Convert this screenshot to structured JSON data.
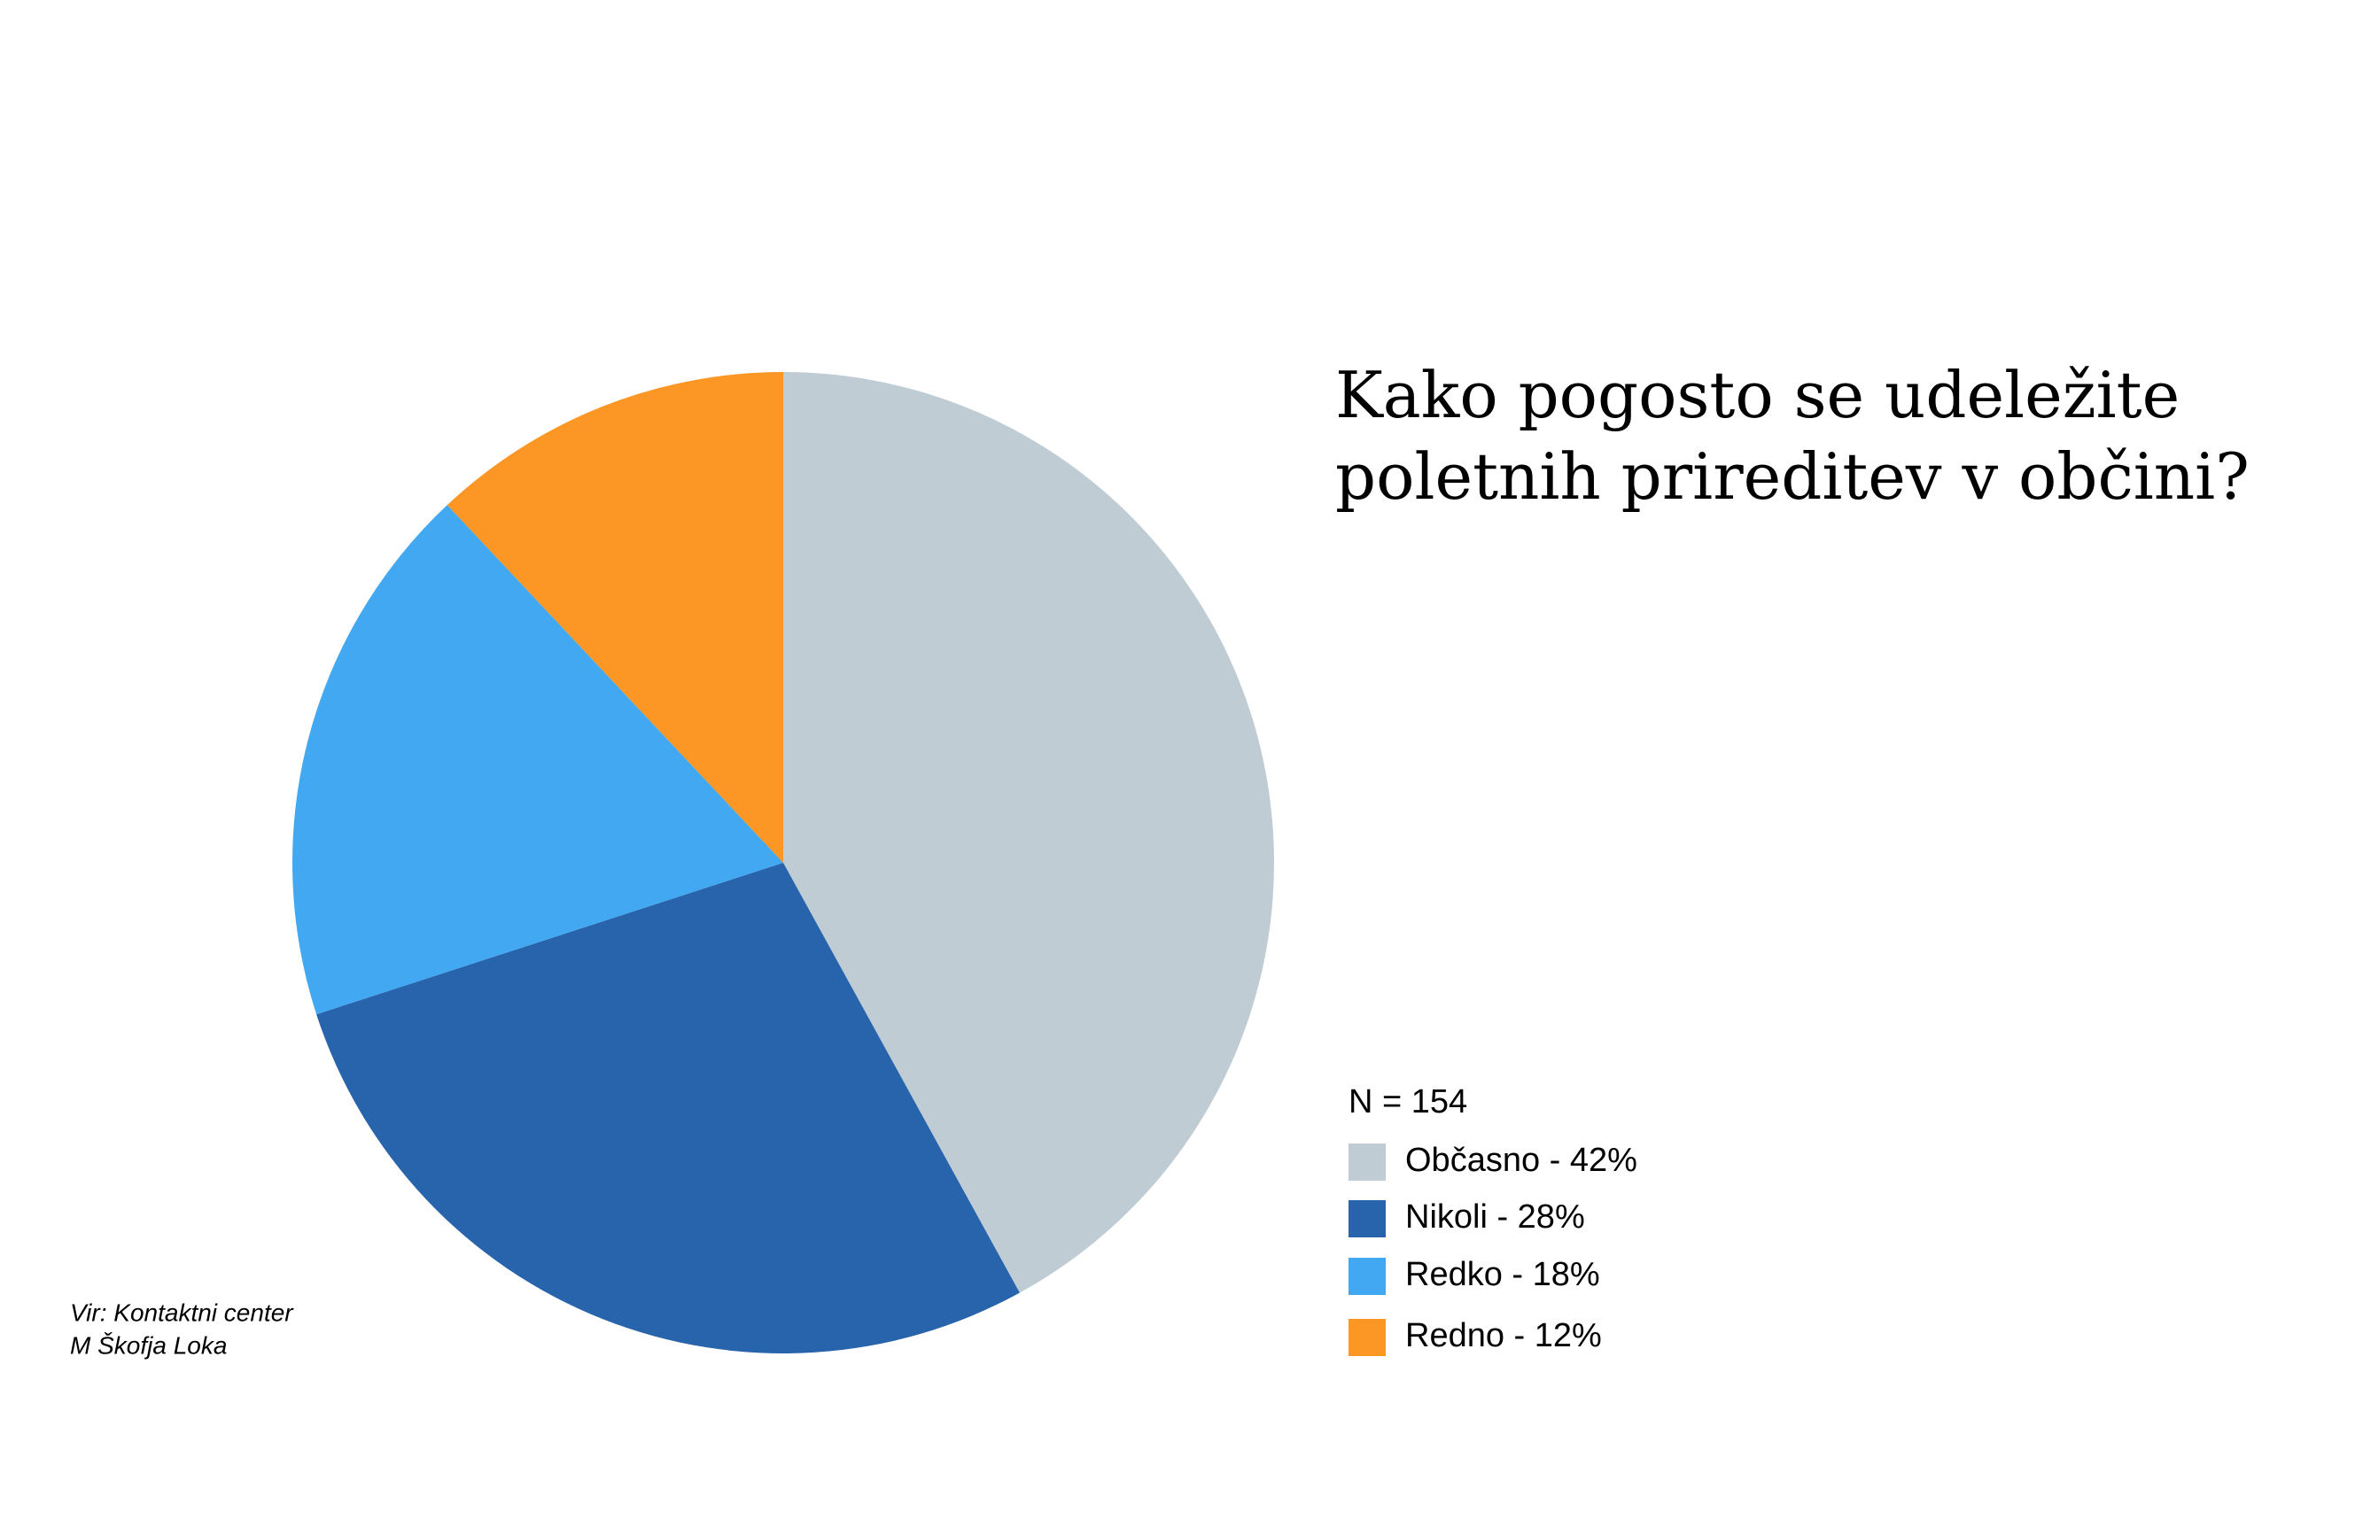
{
  "chart_data": {
    "type": "pie",
    "title": [
      "Kako pogosto se udeležite",
      "poletnih prireditev v občini?"
    ],
    "note": "N = 154",
    "source": [
      "Vir: Kontaktni center",
      "M Škofja Loka"
    ],
    "categories": [
      "Občasno - 42%",
      "Nikoli - 28%",
      "Redko - 18%",
      "Redno - 12%"
    ],
    "values": [
      42,
      28,
      18,
      12
    ],
    "colors": [
      "#bfccd4",
      "#2764ac",
      "#42a8f2",
      "#fc9624"
    ]
  }
}
